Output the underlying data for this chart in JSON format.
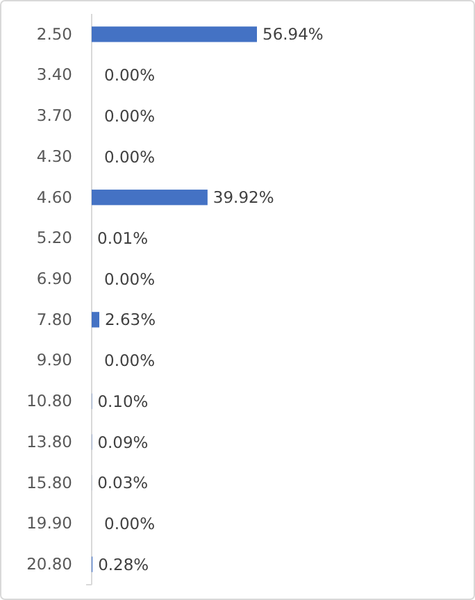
{
  "chart_data": {
    "type": "bar",
    "orientation": "horizontal",
    "categories": [
      "2.50",
      "3.40",
      "3.70",
      "4.30",
      "4.60",
      "5.20",
      "6.90",
      "7.80",
      "9.90",
      "10.80",
      "13.80",
      "15.80",
      "19.90",
      "20.80"
    ],
    "values": [
      56.94,
      0,
      0,
      0,
      39.92,
      0.01,
      0,
      2.63,
      0,
      0.1,
      0.09,
      0.03,
      0,
      0.28
    ],
    "value_labels": [
      "56.94%",
      "0.00%",
      "0.00%",
      "0.00%",
      "39.92%",
      "0.01%",
      "0.00%",
      "2.63%",
      "0.00%",
      "0.10%",
      "0.09%",
      "0.03%",
      "0.00%",
      "0.28%"
    ],
    "color": "#4472c4"
  }
}
